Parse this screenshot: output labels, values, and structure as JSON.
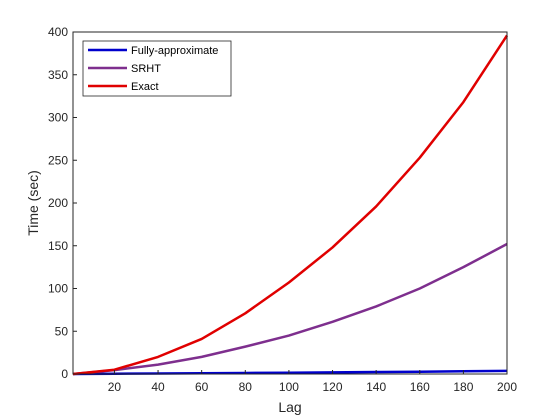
{
  "chart_data": {
    "type": "line",
    "title": "",
    "xlabel": "Lag",
    "ylabel": "Time (sec)",
    "xlim": [
      1,
      200
    ],
    "ylim": [
      0,
      400
    ],
    "xticks": [
      20,
      40,
      60,
      80,
      100,
      120,
      140,
      160,
      180,
      200
    ],
    "yticks": [
      0,
      50,
      100,
      150,
      200,
      250,
      300,
      350,
      400
    ],
    "grid": false,
    "legend_position": "top-left",
    "x": [
      1,
      20,
      40,
      60,
      80,
      100,
      120,
      140,
      160,
      180,
      200
    ],
    "series": [
      {
        "name": "Fully-approximate",
        "color": "#0000cc",
        "values": [
          0,
          0.3,
          0.6,
          0.9,
          1.2,
          1.5,
          1.9,
          2.3,
          2.7,
          3.2,
          3.7
        ]
      },
      {
        "name": "SRHT",
        "color": "#7e2f8e",
        "values": [
          0,
          4.5,
          11,
          20,
          32,
          45,
          61,
          79,
          100,
          125,
          152
        ]
      },
      {
        "name": "Exact",
        "color": "#e00000",
        "values": [
          0,
          5,
          20,
          41,
          71,
          107,
          148,
          196,
          253,
          318,
          396
        ]
      }
    ]
  }
}
